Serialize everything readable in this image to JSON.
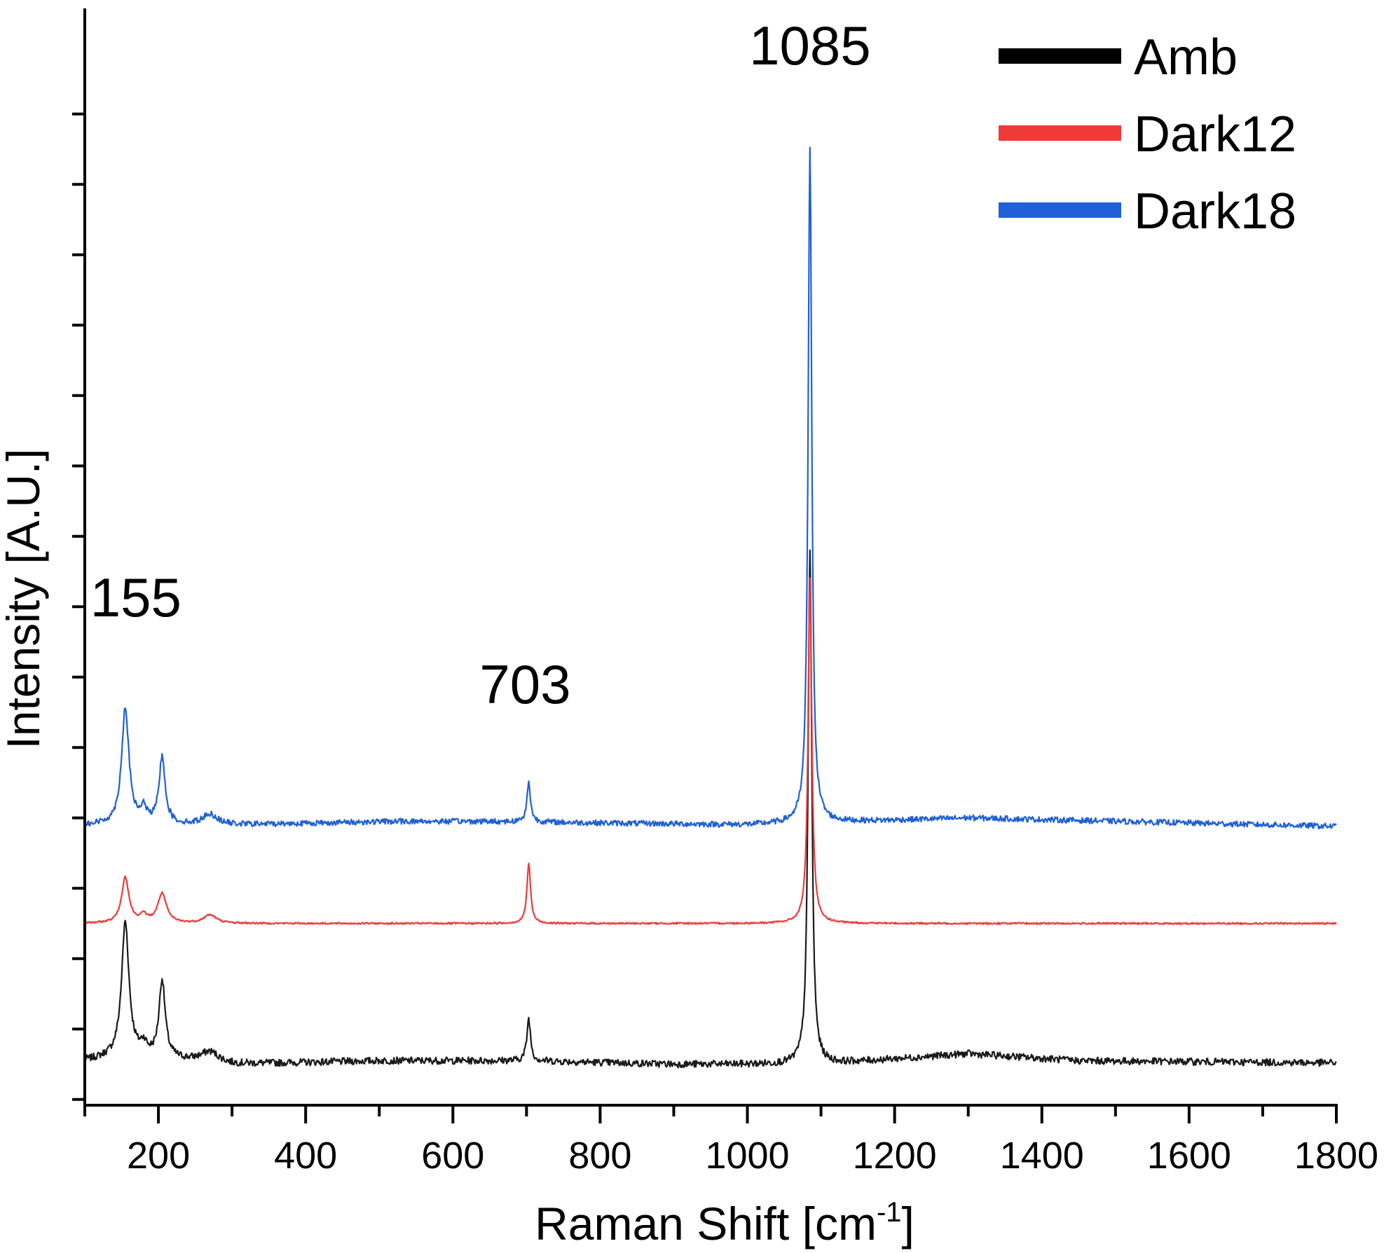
{
  "chart_data": {
    "type": "line",
    "title": "",
    "xlabel": "Raman Shift [cm",
    "xlabel_sup": "-1",
    "xlabel_end": "]",
    "ylabel": "Intensity [A.U.]",
    "xlim": [
      100,
      1800
    ],
    "ylim": [
      0,
      15
    ],
    "xticks": [
      200,
      400,
      600,
      800,
      1000,
      1200,
      1400,
      1600,
      1800
    ],
    "y_tick_labels_shown": false,
    "grid": false,
    "legend_position": "top-right",
    "annotations": [
      {
        "text": "155",
        "x": 155
      },
      {
        "text": "703",
        "x": 703
      },
      {
        "text": "1085",
        "x": 1085
      }
    ],
    "series": [
      {
        "name": "Amb",
        "color": "#1a1a1a",
        "legend_color": "#000000",
        "baseline": 1.0,
        "noise": 0.05,
        "background": [
          [
            100,
            1.05
          ],
          [
            160,
            1.12
          ],
          [
            300,
            1.0
          ],
          [
            500,
            1.05
          ],
          [
            700,
            1.05
          ],
          [
            900,
            1.0
          ],
          [
            1100,
            1.0
          ],
          [
            1300,
            1.15
          ],
          [
            1450,
            1.05
          ],
          [
            1800,
            1.02
          ]
        ],
        "peaks": [
          {
            "x": 155,
            "height": 1.9,
            "width": 6
          },
          {
            "x": 180,
            "height": 0.15,
            "width": 5
          },
          {
            "x": 205,
            "height": 1.1,
            "width": 5
          },
          {
            "x": 270,
            "height": 0.15,
            "width": 15
          },
          {
            "x": 703,
            "height": 0.6,
            "width": 3
          },
          {
            "x": 1085,
            "height": 7.3,
            "width": 3
          }
        ]
      },
      {
        "name": "Dark12",
        "color": "#f03a3a",
        "legend_color": "#f03a3a",
        "baseline": 3.0,
        "noise": 0.012,
        "background": [
          [
            100,
            3.0
          ],
          [
            300,
            3.0
          ],
          [
            1000,
            3.0
          ],
          [
            1800,
            3.0
          ]
        ],
        "peaks": [
          {
            "x": 155,
            "height": 0.65,
            "width": 6
          },
          {
            "x": 180,
            "height": 0.1,
            "width": 6
          },
          {
            "x": 205,
            "height": 0.42,
            "width": 7
          },
          {
            "x": 270,
            "height": 0.12,
            "width": 10
          },
          {
            "x": 703,
            "height": 0.85,
            "width": 3
          },
          {
            "x": 1085,
            "height": 4.9,
            "width": 3
          }
        ]
      },
      {
        "name": "Dark18",
        "color": "#1f60d8",
        "legend_color": "#1f60d8",
        "baseline": 4.4,
        "noise": 0.04,
        "background": [
          [
            100,
            4.4
          ],
          [
            300,
            4.4
          ],
          [
            520,
            4.45
          ],
          [
            640,
            4.45
          ],
          [
            1000,
            4.4
          ],
          [
            1300,
            4.5
          ],
          [
            1800,
            4.38
          ]
        ],
        "peaks": [
          {
            "x": 155,
            "height": 1.65,
            "width": 6
          },
          {
            "x": 180,
            "height": 0.2,
            "width": 5
          },
          {
            "x": 205,
            "height": 0.95,
            "width": 5
          },
          {
            "x": 270,
            "height": 0.15,
            "width": 12
          },
          {
            "x": 703,
            "height": 0.55,
            "width": 3
          },
          {
            "x": 1085,
            "height": 9.6,
            "width": 3
          }
        ]
      }
    ]
  }
}
